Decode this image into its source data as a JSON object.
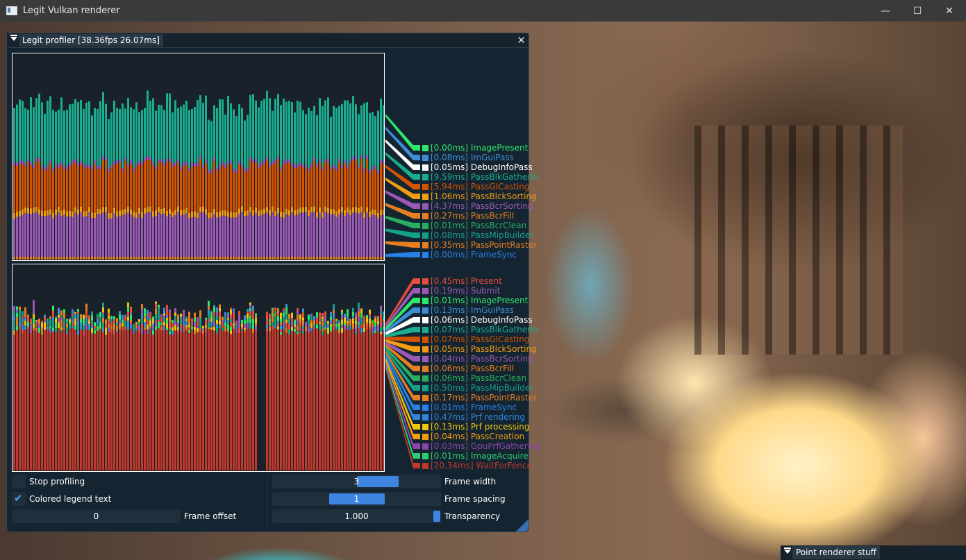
{
  "window": {
    "title": "Legit Vulkan renderer",
    "minimize": "—",
    "maximize": "☐",
    "close": "✕"
  },
  "profiler": {
    "title": "Legit profiler [38.36fps    26.07ms]",
    "close": "✕",
    "cpu_legend": [
      {
        "label": "[0.00ms] ImagePresent",
        "color": "#2ee86b"
      },
      {
        "label": "[0.08ms] ImGuiPass",
        "color": "#3c8fd6"
      },
      {
        "label": "[0.05ms] DebugInfoPass",
        "color": "#ffffff"
      },
      {
        "label": "[9.59ms] PassBlkGatherin",
        "color": "#1aad8f"
      },
      {
        "label": "[5.94ms] PassGICasting",
        "color": "#d35400"
      },
      {
        "label": "[1.06ms] PassBlckSorting",
        "color": "#f39c12"
      },
      {
        "label": "[4.37ms] PassBcrSorting",
        "color": "#9b59b6"
      },
      {
        "label": "[0.27ms] PassBcrFill",
        "color": "#e67e22"
      },
      {
        "label": "[0.01ms] PassBcrClean",
        "color": "#27ae60"
      },
      {
        "label": "[0.08ms] PassMipBuilder",
        "color": "#16a085"
      },
      {
        "label": "[0.35ms] PassPointRaster",
        "color": "#e67e22"
      },
      {
        "label": "[0.00ms] FrameSync",
        "color": "#2980e6"
      }
    ],
    "gpu_legend": [
      {
        "label": "[0.45ms] Present",
        "color": "#e74c3c"
      },
      {
        "label": "[0.19ms] Submit",
        "color": "#9b59b6"
      },
      {
        "label": "[0.01ms] ImagePresent",
        "color": "#2ee86b"
      },
      {
        "label": "[0.13ms] ImGuiPass",
        "color": "#3c8fd6"
      },
      {
        "label": "[0.06ms] DebugInfoPass",
        "color": "#ffffff"
      },
      {
        "label": "[0.07ms] PassBlkGatherin",
        "color": "#1aad8f"
      },
      {
        "label": "[0.07ms] PassGICasting",
        "color": "#d35400"
      },
      {
        "label": "[0.05ms] PassBlckSorting",
        "color": "#f39c12"
      },
      {
        "label": "[0.04ms] PassBcrSorting",
        "color": "#9b59b6"
      },
      {
        "label": "[0.06ms] PassBcrFill",
        "color": "#e67e22"
      },
      {
        "label": "[0.06ms] PassBcrClean",
        "color": "#27ae60"
      },
      {
        "label": "[0.50ms] PassMipBuilder",
        "color": "#16a085"
      },
      {
        "label": "[0.17ms] PassPointRaster",
        "color": "#e67e22"
      },
      {
        "label": "[0.01ms] FrameSync",
        "color": "#2980e6"
      },
      {
        "label": "[0.47ms] Prf rendering",
        "color": "#2e86de"
      },
      {
        "label": "[0.13ms] Prf processing",
        "color": "#f1c40f"
      },
      {
        "label": "[0.04ms] PassCreation",
        "color": "#f39c12"
      },
      {
        "label": "[0.03ms] GpuPrfGathering",
        "color": "#8e44ad"
      },
      {
        "label": "[0.01ms] ImageAcquire",
        "color": "#2ecc71"
      },
      {
        "label": "[20.34ms] WaitForFence",
        "color": "#c0392b"
      }
    ],
    "controls": {
      "stop_profiling": {
        "label": "Stop profiling",
        "checked": false
      },
      "colored_legend": {
        "label": "Colored legend text",
        "checked": true
      },
      "frame_offset": {
        "label": "Frame offset",
        "value": "0"
      },
      "frame_width": {
        "label": "Frame width",
        "value": "3"
      },
      "frame_spacing": {
        "label": "Frame spacing",
        "value": "1"
      },
      "transparency": {
        "label": "Transparency",
        "value": "1.000"
      }
    }
  },
  "point_renderer": {
    "title": "Point renderer stuff"
  }
}
